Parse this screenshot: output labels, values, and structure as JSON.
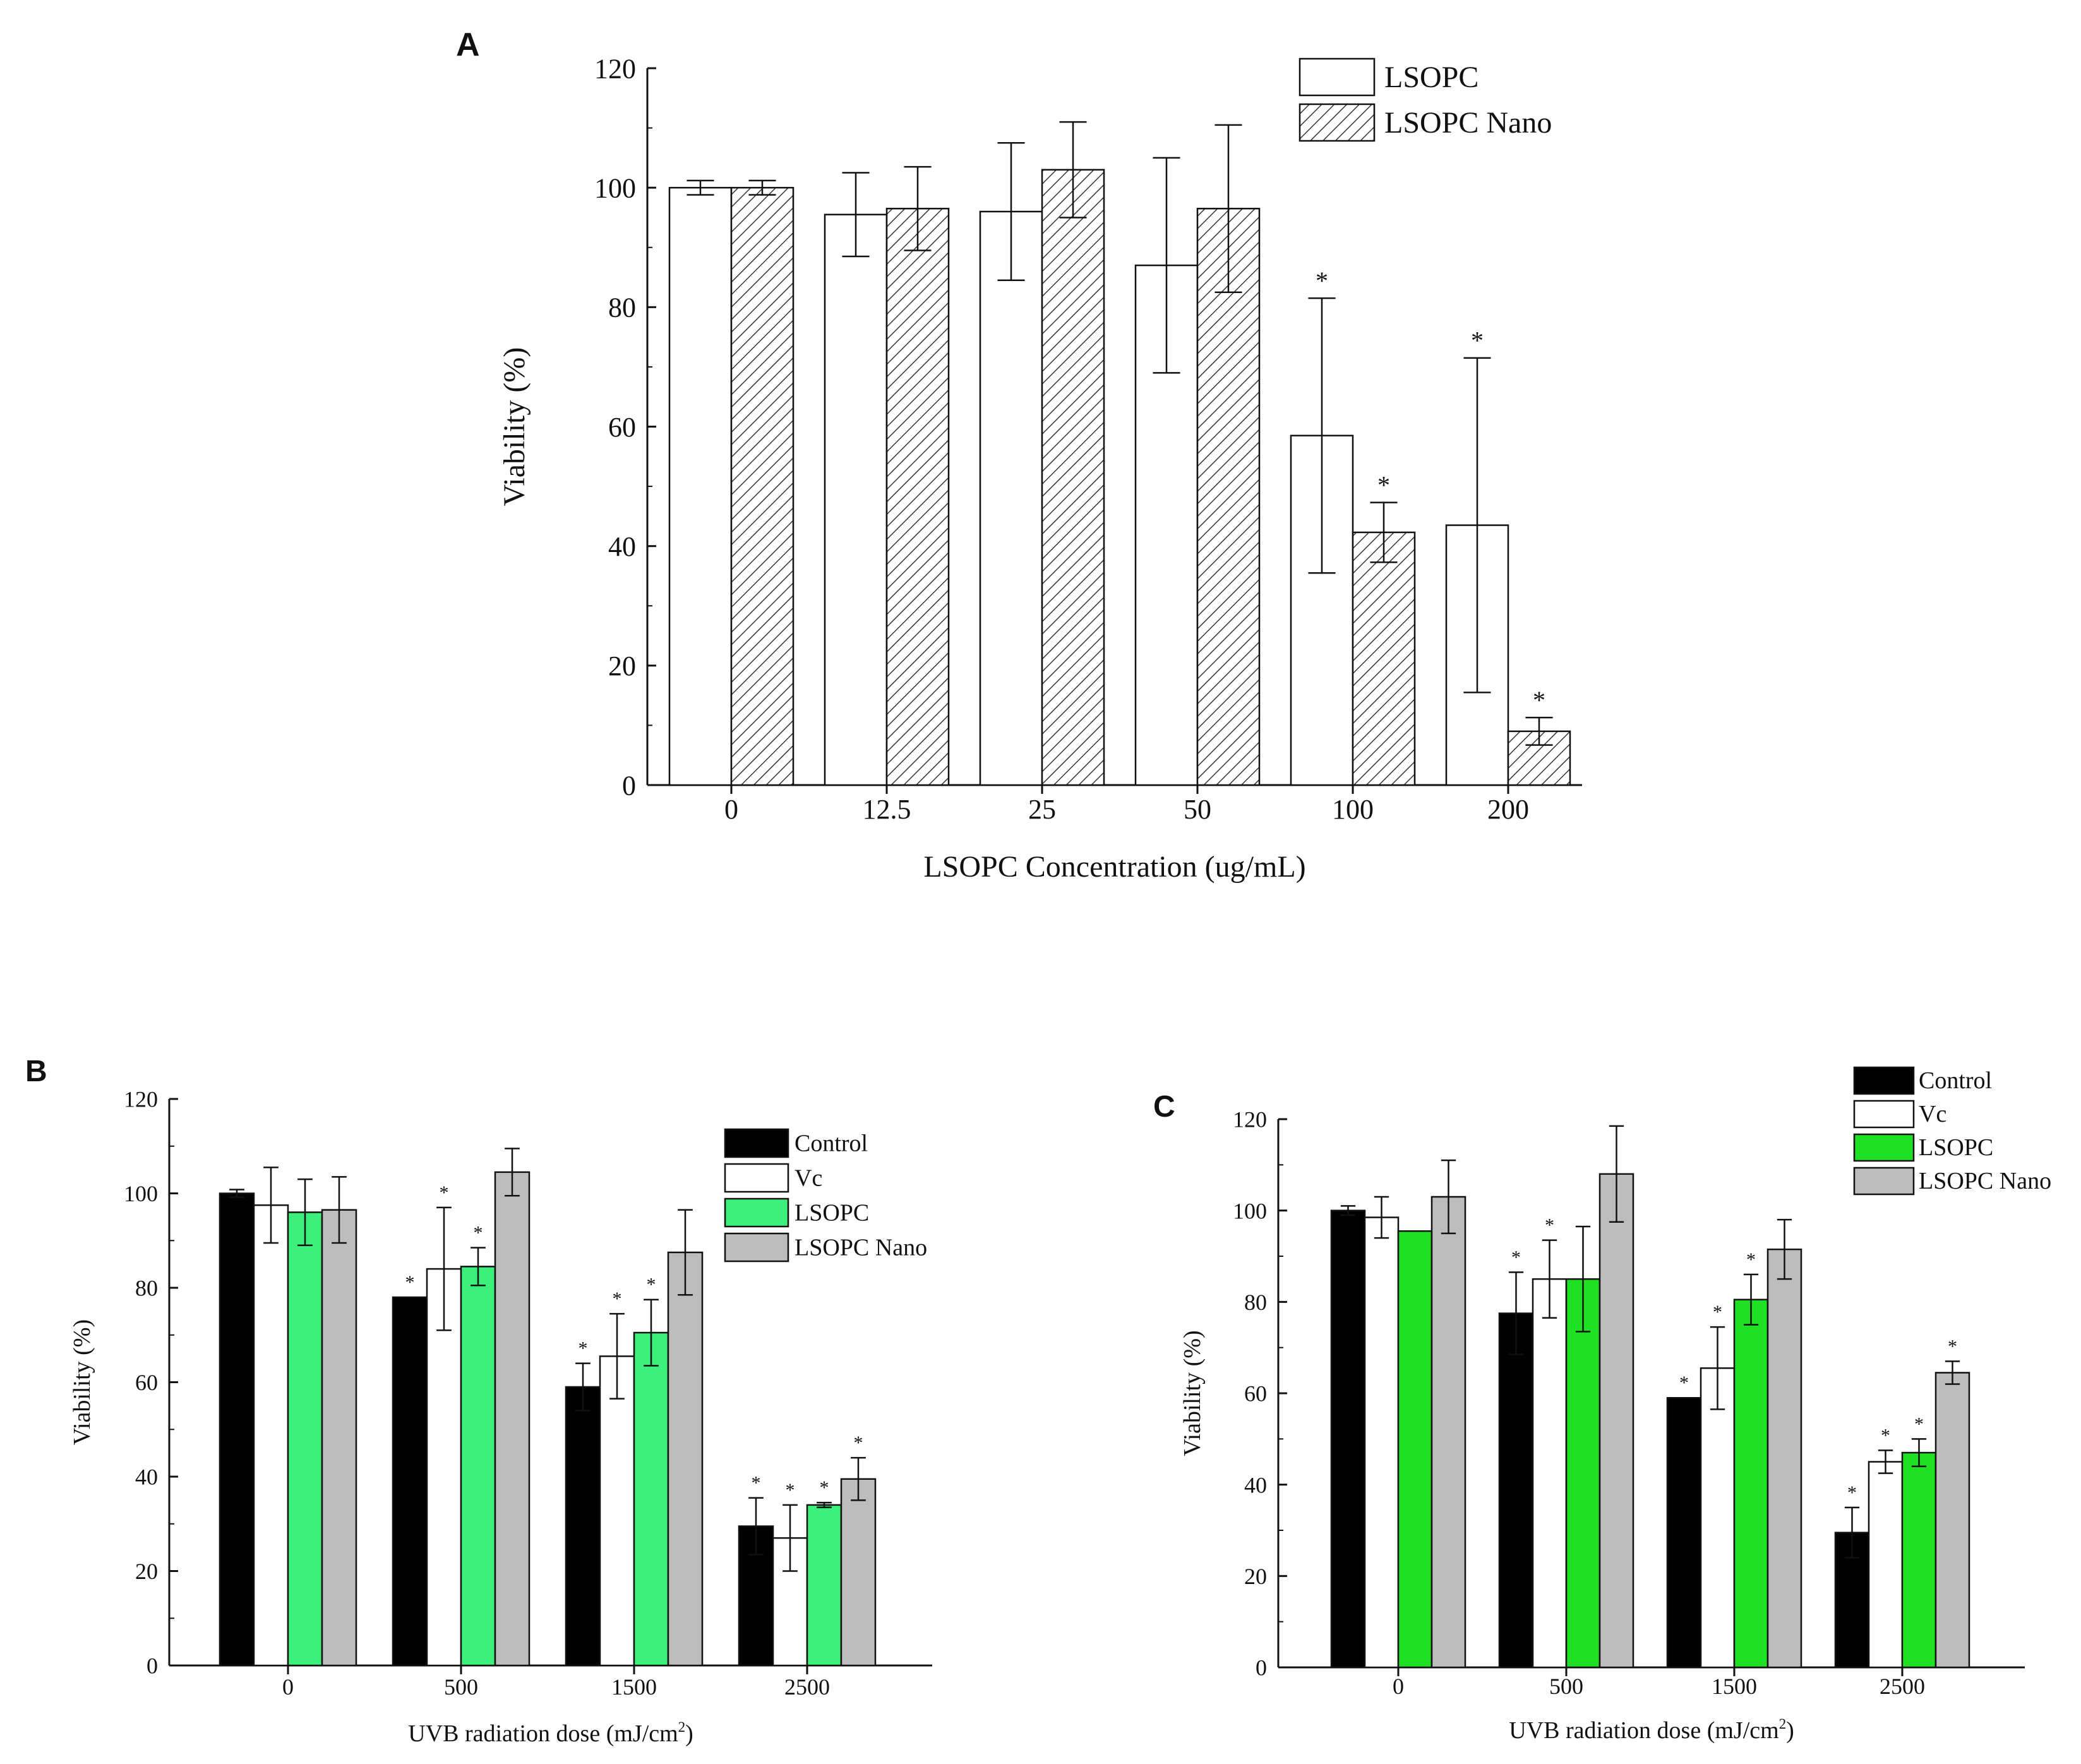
{
  "panels": {
    "A": {
      "letter": "A"
    },
    "B": {
      "letter": "B"
    },
    "C": {
      "letter": "C"
    }
  },
  "colors": {
    "control": "#000000",
    "vc": "#ffffff",
    "lsopc_green_b": "#3df07c",
    "lsopc_green_c": "#1fe022",
    "nano_gray": "#bdbdbd",
    "hatch": "#333333"
  },
  "chart_data": [
    {
      "id": "A",
      "type": "bar",
      "title": "",
      "xlabel": "LSOPC  Concentration  (ug/mL)",
      "ylabel": "Viability (%)",
      "ylim": [
        0,
        120
      ],
      "yticks": [
        "0",
        "20",
        "40",
        "60",
        "80",
        "100",
        "120"
      ],
      "categories": [
        "0",
        "12.5",
        "25",
        "50",
        "100",
        "200"
      ],
      "legend_position": "top-right",
      "series": [
        {
          "name": "LSOPC",
          "style": "white",
          "values": [
            100,
            95.5,
            96,
            87,
            58.5,
            43.5
          ],
          "errors": [
            1.2,
            7,
            11.5,
            18,
            23,
            28
          ],
          "sig": [
            "",
            "",
            "",
            "",
            "*",
            "*"
          ]
        },
        {
          "name": "LSOPC Nano",
          "style": "hatch",
          "values": [
            100,
            96.5,
            103,
            96.5,
            42.3,
            9
          ],
          "errors": [
            1.2,
            7,
            8,
            14,
            5,
            2.3
          ],
          "sig": [
            "",
            "",
            "",
            "",
            "*",
            "*"
          ]
        }
      ]
    },
    {
      "id": "B",
      "type": "bar",
      "title": "",
      "xlabel": "UVB radiation dose (mJ/cm",
      "xlabel_sup": "2",
      "xlabel_end": ")",
      "ylabel": "Viability (%)",
      "ylim": [
        0,
        120
      ],
      "yticks": [
        "0",
        "20",
        "40",
        "60",
        "80",
        "100",
        "120"
      ],
      "categories": [
        "0",
        "500",
        "1500",
        "2500"
      ],
      "legend_position": "top-right",
      "series": [
        {
          "name": "Control",
          "style": "control",
          "values": [
            100,
            78,
            59,
            29.5
          ],
          "errors": [
            0.8,
            0,
            5,
            6
          ],
          "sig": [
            "",
            "*",
            "*",
            "*"
          ]
        },
        {
          "name": "Vc",
          "style": "vc",
          "values": [
            97.5,
            84,
            65.5,
            27
          ],
          "errors": [
            8,
            13,
            9,
            7
          ],
          "sig": [
            "",
            "*",
            "*",
            "*"
          ]
        },
        {
          "name": "LSOPC",
          "style": "green_b",
          "values": [
            96,
            84.5,
            70.5,
            34
          ],
          "errors": [
            7,
            4,
            7,
            0.5
          ],
          "sig": [
            "",
            "*",
            "*",
            "*"
          ]
        },
        {
          "name": "LSOPC Nano",
          "style": "gray",
          "values": [
            96.5,
            104.5,
            87.5,
            39.5
          ],
          "errors": [
            7,
            5,
            9,
            4.5
          ],
          "sig": [
            "",
            "",
            "",
            "*"
          ]
        }
      ]
    },
    {
      "id": "C",
      "type": "bar",
      "title": "",
      "xlabel": "UVB radiation dose (mJ/cm",
      "xlabel_sup": "2",
      "xlabel_end": ")",
      "ylabel": "Viability (%)",
      "ylim": [
        0,
        120
      ],
      "yticks": [
        "0",
        "20",
        "40",
        "60",
        "80",
        "100",
        "120"
      ],
      "categories": [
        "0",
        "500",
        "1500",
        "2500"
      ],
      "legend_position": "top-right",
      "series": [
        {
          "name": "Control",
          "style": "control",
          "values": [
            100,
            77.5,
            59,
            29.5
          ],
          "errors": [
            1,
            9,
            0,
            5.5
          ],
          "sig": [
            "",
            "*",
            "*",
            "*"
          ]
        },
        {
          "name": "Vc",
          "style": "vc",
          "values": [
            98.5,
            85,
            65.5,
            45
          ],
          "errors": [
            4.5,
            8.5,
            9,
            2.5
          ],
          "sig": [
            "",
            "*",
            "*",
            "*"
          ]
        },
        {
          "name": "LSOPC",
          "style": "green_c",
          "values": [
            95.5,
            85,
            80.5,
            47
          ],
          "errors": [
            0,
            11.5,
            5.5,
            3
          ],
          "sig": [
            "",
            "",
            "*",
            "*"
          ]
        },
        {
          "name": "LSOPC Nano",
          "style": "gray",
          "values": [
            103,
            108,
            91.5,
            64.5
          ],
          "errors": [
            8,
            10.5,
            6.5,
            2.5
          ],
          "sig": [
            "",
            "",
            "",
            "*"
          ]
        }
      ]
    }
  ]
}
